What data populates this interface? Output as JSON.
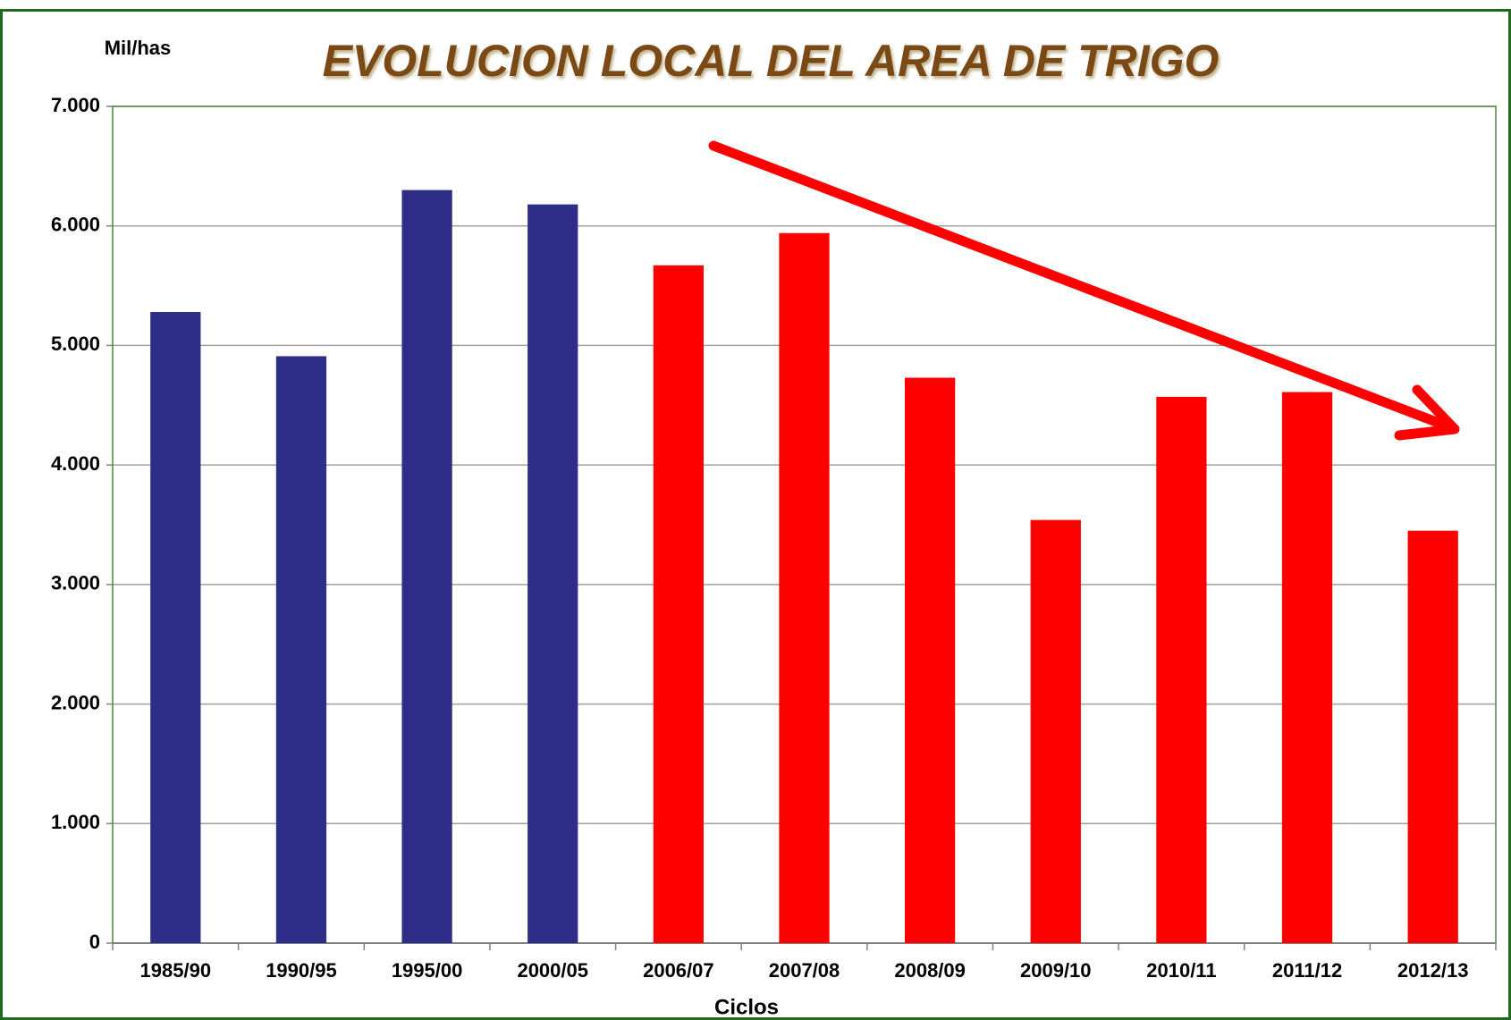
{
  "chart_data": {
    "type": "bar",
    "title": "EVOLUCION LOCAL DEL AREA DE TRIGO",
    "y_label": "Mil/has",
    "x_label": "Ciclos",
    "categories": [
      "1985/90",
      "1990/95",
      "1995/00",
      "2000/05",
      "2006/07",
      "2007/08",
      "2008/09",
      "2009/10",
      "2010/11",
      "2011/12",
      "2012/13"
    ],
    "values": [
      5280,
      4910,
      6300,
      6180,
      5670,
      5940,
      4730,
      3540,
      4570,
      4610,
      3450
    ],
    "colors": [
      "#2e2d87",
      "#2e2d87",
      "#2e2d87",
      "#2e2d87",
      "#ff0000",
      "#ff0000",
      "#ff0000",
      "#ff0000",
      "#ff0000",
      "#ff0000",
      "#ff0000"
    ],
    "ylim": [
      0,
      7000
    ],
    "yticks": [
      0,
      {
        "value": 1000,
        "label": "1.000"
      },
      {
        "value": 2000,
        "label": "2.000"
      },
      {
        "value": 3000,
        "label": "3.000"
      },
      {
        "value": 4000,
        "label": "4.000"
      },
      {
        "value": 5000,
        "label": "5.000"
      },
      {
        "value": 6000,
        "label": "6.000"
      },
      {
        "value": 7000,
        "label": "7.000"
      }
    ],
    "grid": true
  }
}
